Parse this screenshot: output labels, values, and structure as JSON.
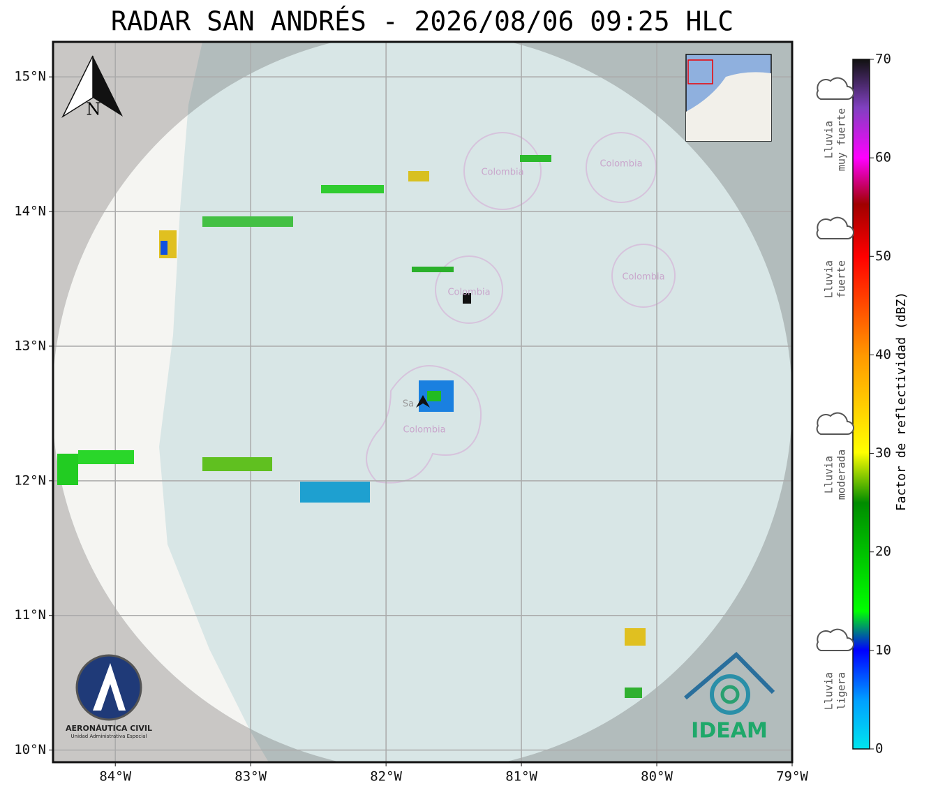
{
  "title": "RADAR SAN ANDRÉS - 2026/08/06 09:25 HLC",
  "map": {
    "xlim": [
      -84.46,
      -79
    ],
    "ylim": [
      9.91,
      15.26
    ],
    "xticks": [
      {
        "value": -84,
        "label": "84°W"
      },
      {
        "value": -83,
        "label": "83°W"
      },
      {
        "value": -82,
        "label": "82°W"
      },
      {
        "value": -81,
        "label": "81°W"
      },
      {
        "value": -80,
        "label": "80°W"
      },
      {
        "value": -79,
        "label": "79°W"
      }
    ],
    "yticks": [
      {
        "value": 10,
        "label": "10°N"
      },
      {
        "value": 11,
        "label": "11°N"
      },
      {
        "value": 12,
        "label": "12°N"
      },
      {
        "value": 13,
        "label": "13°N"
      },
      {
        "value": 14,
        "label": "14°N"
      },
      {
        "value": 15,
        "label": "15°N"
      }
    ],
    "grid": true,
    "place_labels": [
      "Colombia",
      "Colombia",
      "Colombia",
      "Colombia",
      "Colombia",
      "Sa"
    ],
    "north": "N"
  },
  "colorbar": {
    "label": "Factor de reflectividad (dBZ)",
    "lim": [
      0,
      70
    ],
    "ticks": [
      0,
      10,
      20,
      30,
      40,
      50,
      60,
      70
    ]
  },
  "rain_categories": [
    [
      "Lluvia",
      "muy fuerte"
    ],
    [
      "Lluvia",
      "fuerte"
    ],
    [
      "Lluvia",
      "moderada"
    ],
    [
      "Lluvia",
      "ligera"
    ]
  ],
  "logos": {
    "aerocivil": "AERONÁUTICA CIVIL",
    "aerocivil_sub": "Unidad Administrativa Especial",
    "ideam": "IDEAM"
  }
}
